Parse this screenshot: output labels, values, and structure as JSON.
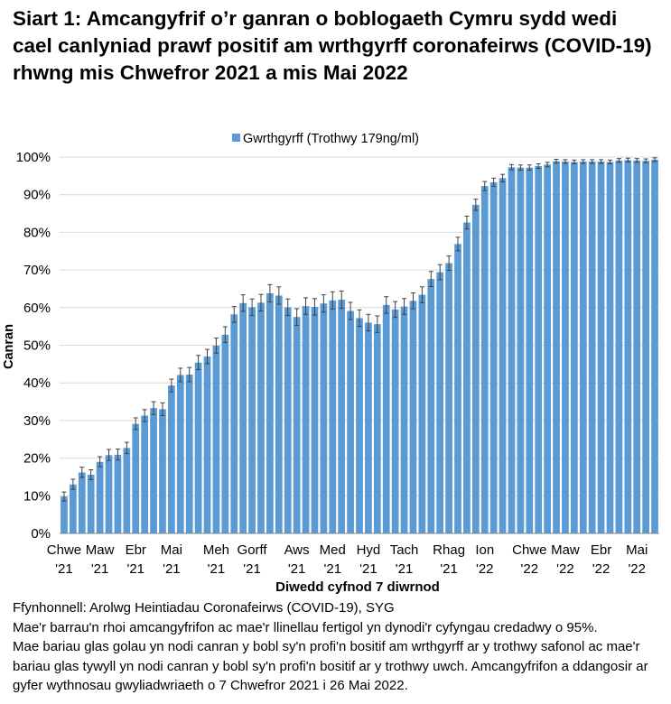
{
  "title": "Siart 1: Amcangyfrif o’r ganran o boblogaeth Cymru sydd wedi cael canlyniad prawf positif am wrthgyrff coronafeirws (COVID-19) rhwng mis Chwefror 2021 a mis Mai 2022",
  "colors": {
    "bar": "#5b9bd5",
    "error_bar": "#404040",
    "gridline": "#d9d9d9",
    "axis": "#868686"
  },
  "chart_data": {
    "type": "bar",
    "legend": "Gwrthgyrff (Trothwy 179ng/ml)",
    "legend_position": "top",
    "ylabel": "Canran",
    "xlabel": "Diwedd cyfnod 7 diwrnod",
    "ylim": [
      0,
      100
    ],
    "yticks": [
      "0%",
      "10%",
      "20%",
      "30%",
      "40%",
      "50%",
      "60%",
      "70%",
      "80%",
      "90%",
      "100%"
    ],
    "grid": true,
    "xticks": [
      {
        "index": 0,
        "line1": "Chwe",
        "line2": "'21"
      },
      {
        "index": 4,
        "line1": "Maw",
        "line2": "'21"
      },
      {
        "index": 8,
        "line1": "Ebr",
        "line2": "'21"
      },
      {
        "index": 12,
        "line1": "Mai",
        "line2": "'21"
      },
      {
        "index": 17,
        "line1": "Meh",
        "line2": "'21"
      },
      {
        "index": 21,
        "line1": "Gorff",
        "line2": "'21"
      },
      {
        "index": 26,
        "line1": "Aws",
        "line2": "'21"
      },
      {
        "index": 30,
        "line1": "Med",
        "line2": "'21"
      },
      {
        "index": 34,
        "line1": "Hyd",
        "line2": "'21"
      },
      {
        "index": 38,
        "line1": "Tach",
        "line2": "'21"
      },
      {
        "index": 43,
        "line1": "Rhag",
        "line2": "'21"
      },
      {
        "index": 47,
        "line1": "Ion",
        "line2": "'22"
      },
      {
        "index": 52,
        "line1": "Chwe",
        "line2": "'22"
      },
      {
        "index": 56,
        "line1": "Maw",
        "line2": "'22"
      },
      {
        "index": 60,
        "line1": "Ebr",
        "line2": "'22"
      },
      {
        "index": 64,
        "line1": "Mai",
        "line2": "'22"
      }
    ],
    "series": [
      {
        "name": "Gwrthgyrff (Trothwy 179ng/ml)",
        "values": [
          9.8,
          13.0,
          16.2,
          15.6,
          19.0,
          20.8,
          20.9,
          22.7,
          29.1,
          31.3,
          33.3,
          33.0,
          39.3,
          42.1,
          42.2,
          45.4,
          47.0,
          49.9,
          52.8,
          58.2,
          61.2,
          60.1,
          61.3,
          63.8,
          63.2,
          60.1,
          57.5,
          60.4,
          60.2,
          61.1,
          61.9,
          62.1,
          59.1,
          57.2,
          56.0,
          55.6,
          60.7,
          59.5,
          60.3,
          61.8,
          63.4,
          67.6,
          69.4,
          71.8,
          76.9,
          82.6,
          87.3,
          92.3,
          93.3,
          94.4,
          97.3,
          97.2,
          97.2,
          97.6,
          98.0,
          98.9,
          98.8,
          98.7,
          98.8,
          98.8,
          98.8,
          98.7,
          99.1,
          99.2,
          99.1,
          99.0,
          99.3
        ],
        "ci_lower": [
          8.6,
          11.7,
          14.9,
          14.3,
          17.7,
          19.4,
          19.5,
          21.2,
          27.6,
          29.7,
          31.6,
          31.3,
          37.6,
          40.3,
          40.3,
          43.5,
          45.1,
          47.9,
          50.7,
          56.1,
          59.0,
          57.9,
          59.1,
          61.5,
          60.9,
          57.9,
          55.3,
          58.2,
          58.0,
          58.8,
          59.6,
          59.8,
          56.8,
          55.0,
          53.8,
          53.4,
          58.5,
          57.4,
          58.2,
          59.7,
          61.3,
          65.6,
          67.4,
          69.9,
          75.1,
          80.9,
          85.8,
          91.1,
          92.2,
          93.4,
          96.6,
          96.5,
          96.5,
          97.0,
          97.4,
          98.4,
          98.3,
          98.2,
          98.3,
          98.3,
          98.3,
          98.2,
          98.6,
          98.7,
          98.6,
          98.5,
          98.8
        ],
        "ci_upper": [
          11.0,
          14.4,
          17.6,
          16.9,
          20.4,
          22.3,
          22.4,
          24.2,
          30.7,
          32.9,
          35.0,
          34.7,
          41.0,
          43.9,
          44.1,
          47.3,
          48.9,
          51.9,
          54.9,
          60.3,
          63.4,
          62.3,
          63.5,
          66.1,
          65.5,
          62.3,
          59.7,
          62.6,
          62.4,
          63.4,
          64.2,
          64.4,
          61.4,
          59.4,
          58.2,
          57.8,
          62.9,
          61.6,
          62.4,
          63.9,
          65.5,
          69.6,
          71.4,
          73.7,
          78.7,
          84.3,
          88.8,
          93.5,
          94.4,
          95.4,
          98.0,
          97.9,
          97.9,
          98.2,
          98.6,
          99.4,
          99.3,
          99.2,
          99.3,
          99.3,
          99.3,
          99.2,
          99.6,
          99.7,
          99.6,
          99.5,
          99.8
        ]
      }
    ]
  },
  "footnotes": [
    "Ffynhonnell: Arolwg Heintiadau Coronafeirws (COVID-19), SYG",
    "Mae'r barrau'n rhoi amcangyfrifon ac mae'r llinellau fertigol yn dynodi'r cyfyngau credadwy o 95%.",
    "Mae bariau glas golau yn nodi canran y bobl sy'n profi'n bositif am wrthgyrff ar y trothwy safonol ac mae'r bariau glas tywyll yn nodi canran y bobl sy'n profi'n bositif ar y trothwy uwch. Amcangyfrifon a ddangosir ar gyfer wythnosau gwyliadwriaeth o 7 Chwefror 2021 i 26 Mai 2022."
  ]
}
